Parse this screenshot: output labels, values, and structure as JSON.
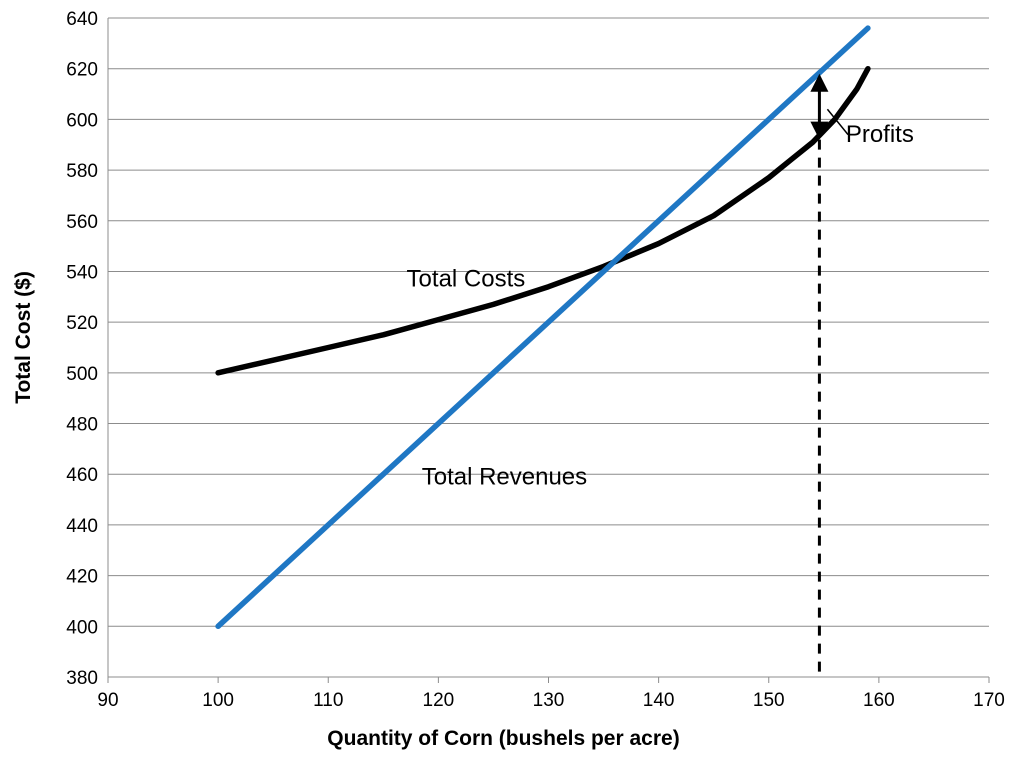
{
  "chart_data": {
    "type": "line",
    "title": "",
    "xlabel": "Quantity of Corn (bushels per acre)",
    "ylabel": "Total Cost ($)",
    "xlim": [
      90,
      170
    ],
    "ylim": [
      380,
      640
    ],
    "x_ticks": [
      90,
      100,
      110,
      120,
      130,
      140,
      150,
      160,
      170
    ],
    "y_ticks": [
      380,
      400,
      420,
      440,
      460,
      480,
      500,
      520,
      540,
      560,
      580,
      600,
      620,
      640
    ],
    "grid": "horizontal",
    "series": [
      {
        "name": "Total Costs",
        "color": "#000000",
        "points": [
          [
            100,
            500
          ],
          [
            105,
            505
          ],
          [
            110,
            510
          ],
          [
            115,
            515
          ],
          [
            120,
            521
          ],
          [
            125,
            527
          ],
          [
            130,
            534
          ],
          [
            135,
            542
          ],
          [
            140,
            551
          ],
          [
            145,
            562
          ],
          [
            150,
            577
          ],
          [
            152,
            584
          ],
          [
            154,
            591
          ],
          [
            156,
            600
          ],
          [
            158,
            612
          ],
          [
            159,
            620
          ]
        ]
      },
      {
        "name": "Total Revenues",
        "color": "#1f77c4",
        "points": [
          [
            100,
            400
          ],
          [
            159,
            636
          ]
        ]
      }
    ],
    "annotations": [
      {
        "text": "Total Costs",
        "x": 122.5,
        "y": 534
      },
      {
        "text": "Total Revenues",
        "x": 126,
        "y": 456
      },
      {
        "text": "Profits",
        "x": 157,
        "y": 591
      }
    ],
    "profit_marker": {
      "x": 154.6,
      "y_top": 618,
      "y_bottom": 592
    }
  }
}
